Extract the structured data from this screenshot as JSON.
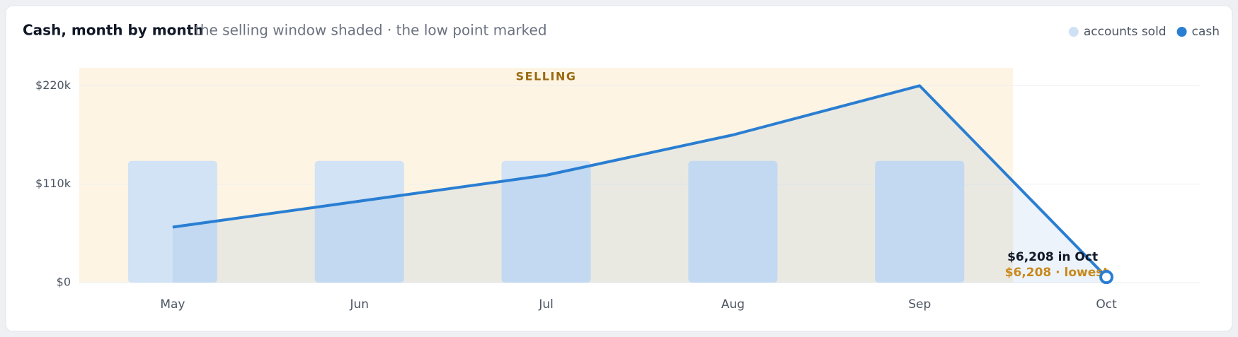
{
  "chart_data": {
    "type": "bar-line",
    "title": "Cash, month by month",
    "subtitle": "the selling window shaded · the low point marked",
    "categories": [
      "May",
      "Jun",
      "Jul",
      "Aug",
      "Sep",
      "Oct"
    ],
    "series": [
      {
        "name": "accounts sold",
        "color": "#cfe1f5",
        "type": "bar",
        "values": [
          136000,
          136000,
          136000,
          136000,
          136000,
          null
        ]
      },
      {
        "name": "cash",
        "color": "#2a7ed2",
        "type": "line",
        "values": [
          62000,
          91000,
          120000,
          165000,
          220000,
          6208
        ]
      }
    ],
    "ylim": [
      0,
      240000
    ],
    "yticks": [
      {
        "value": 0,
        "label": "$0"
      },
      {
        "value": 110000,
        "label": "$110k"
      },
      {
        "value": 220000,
        "label": "$220k"
      }
    ],
    "grid": true,
    "shade": {
      "label": "SELLING",
      "from": "May",
      "to": "Sep",
      "color": "#fdf4e3"
    },
    "annotations": [
      "$6,208 in Oct"
    ],
    "value_labels": {
      "series": 1,
      "index": 5,
      "label": "$6,208 · lowest"
    },
    "legend": "top-right"
  }
}
